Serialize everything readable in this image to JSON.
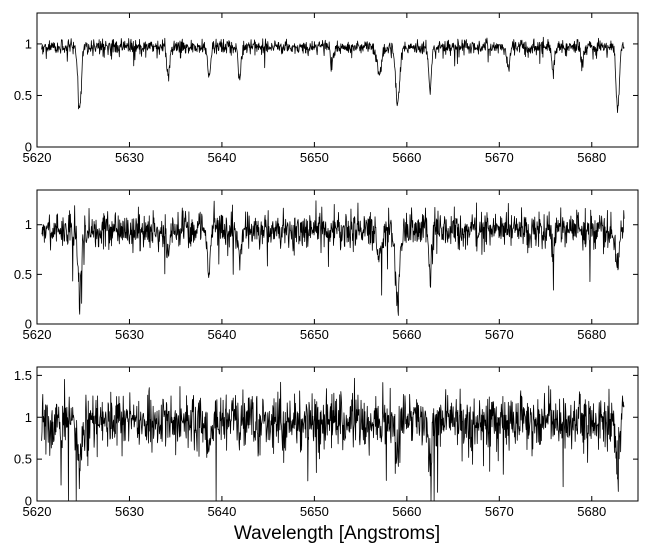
{
  "figure": {
    "xlabel": "Wavelength [Angstroms]"
  },
  "chart_data": [
    {
      "type": "line",
      "series_color": "#000000",
      "xlim": [
        5620,
        5685
      ],
      "ylim": [
        0,
        1.3
      ],
      "x_ticks": [
        5620,
        5630,
        5640,
        5650,
        5660,
        5670,
        5680
      ],
      "y_ticks": [
        0,
        0.5,
        1
      ],
      "x_range": [
        5620.5,
        5683.5
      ],
      "noise": 0.035,
      "baseline": 0.97,
      "absorption_lines": [
        {
          "center": 5624.6,
          "depth": 0.62,
          "width": 0.18
        },
        {
          "center": 5634.2,
          "depth": 0.3,
          "width": 0.15
        },
        {
          "center": 5638.6,
          "depth": 0.3,
          "width": 0.15
        },
        {
          "center": 5641.9,
          "depth": 0.32,
          "width": 0.15
        },
        {
          "center": 5651.9,
          "depth": 0.18,
          "width": 0.15
        },
        {
          "center": 5657.0,
          "depth": 0.25,
          "width": 0.25
        },
        {
          "center": 5659.0,
          "depth": 0.56,
          "width": 0.22
        },
        {
          "center": 5662.5,
          "depth": 0.4,
          "width": 0.16
        },
        {
          "center": 5671.0,
          "depth": 0.2,
          "width": 0.15
        },
        {
          "center": 5675.8,
          "depth": 0.25,
          "width": 0.15
        },
        {
          "center": 5679.0,
          "depth": 0.18,
          "width": 0.15
        },
        {
          "center": 5682.8,
          "depth": 0.58,
          "width": 0.18
        }
      ]
    },
    {
      "type": "line",
      "series_color": "#000000",
      "xlim": [
        5620,
        5685
      ],
      "ylim": [
        0,
        1.35
      ],
      "x_ticks": [
        5620,
        5630,
        5640,
        5650,
        5660,
        5670,
        5680
      ],
      "y_ticks": [
        0,
        0.5,
        1
      ],
      "x_range": [
        5620.5,
        5683.5
      ],
      "noise": 0.09,
      "baseline": 0.95,
      "absorption_lines": [
        {
          "center": 5624.6,
          "depth": 0.72,
          "width": 0.18
        },
        {
          "center": 5634.2,
          "depth": 0.25,
          "width": 0.15
        },
        {
          "center": 5638.6,
          "depth": 0.45,
          "width": 0.15
        },
        {
          "center": 5641.9,
          "depth": 0.3,
          "width": 0.15
        },
        {
          "center": 5657.0,
          "depth": 0.25,
          "width": 0.25
        },
        {
          "center": 5659.0,
          "depth": 0.72,
          "width": 0.22
        },
        {
          "center": 5662.5,
          "depth": 0.4,
          "width": 0.16
        },
        {
          "center": 5675.8,
          "depth": 0.25,
          "width": 0.15
        },
        {
          "center": 5682.8,
          "depth": 0.4,
          "width": 0.18
        }
      ]
    },
    {
      "type": "line",
      "series_color": "#000000",
      "xlim": [
        5620,
        5685
      ],
      "ylim": [
        0,
        1.6
      ],
      "x_ticks": [
        5620,
        5630,
        5640,
        5650,
        5660,
        5670,
        5680
      ],
      "y_ticks": [
        0,
        0.5,
        1,
        1.5
      ],
      "x_range": [
        5620.5,
        5683.5
      ],
      "noise": 0.17,
      "baseline": 0.95,
      "absorption_lines": [
        {
          "center": 5624.6,
          "depth": 0.55,
          "width": 0.18
        },
        {
          "center": 5638.6,
          "depth": 0.3,
          "width": 0.15
        },
        {
          "center": 5659.0,
          "depth": 0.35,
          "width": 0.22
        },
        {
          "center": 5662.5,
          "depth": 0.6,
          "width": 0.16
        },
        {
          "center": 5682.8,
          "depth": 0.6,
          "width": 0.18
        }
      ]
    }
  ]
}
